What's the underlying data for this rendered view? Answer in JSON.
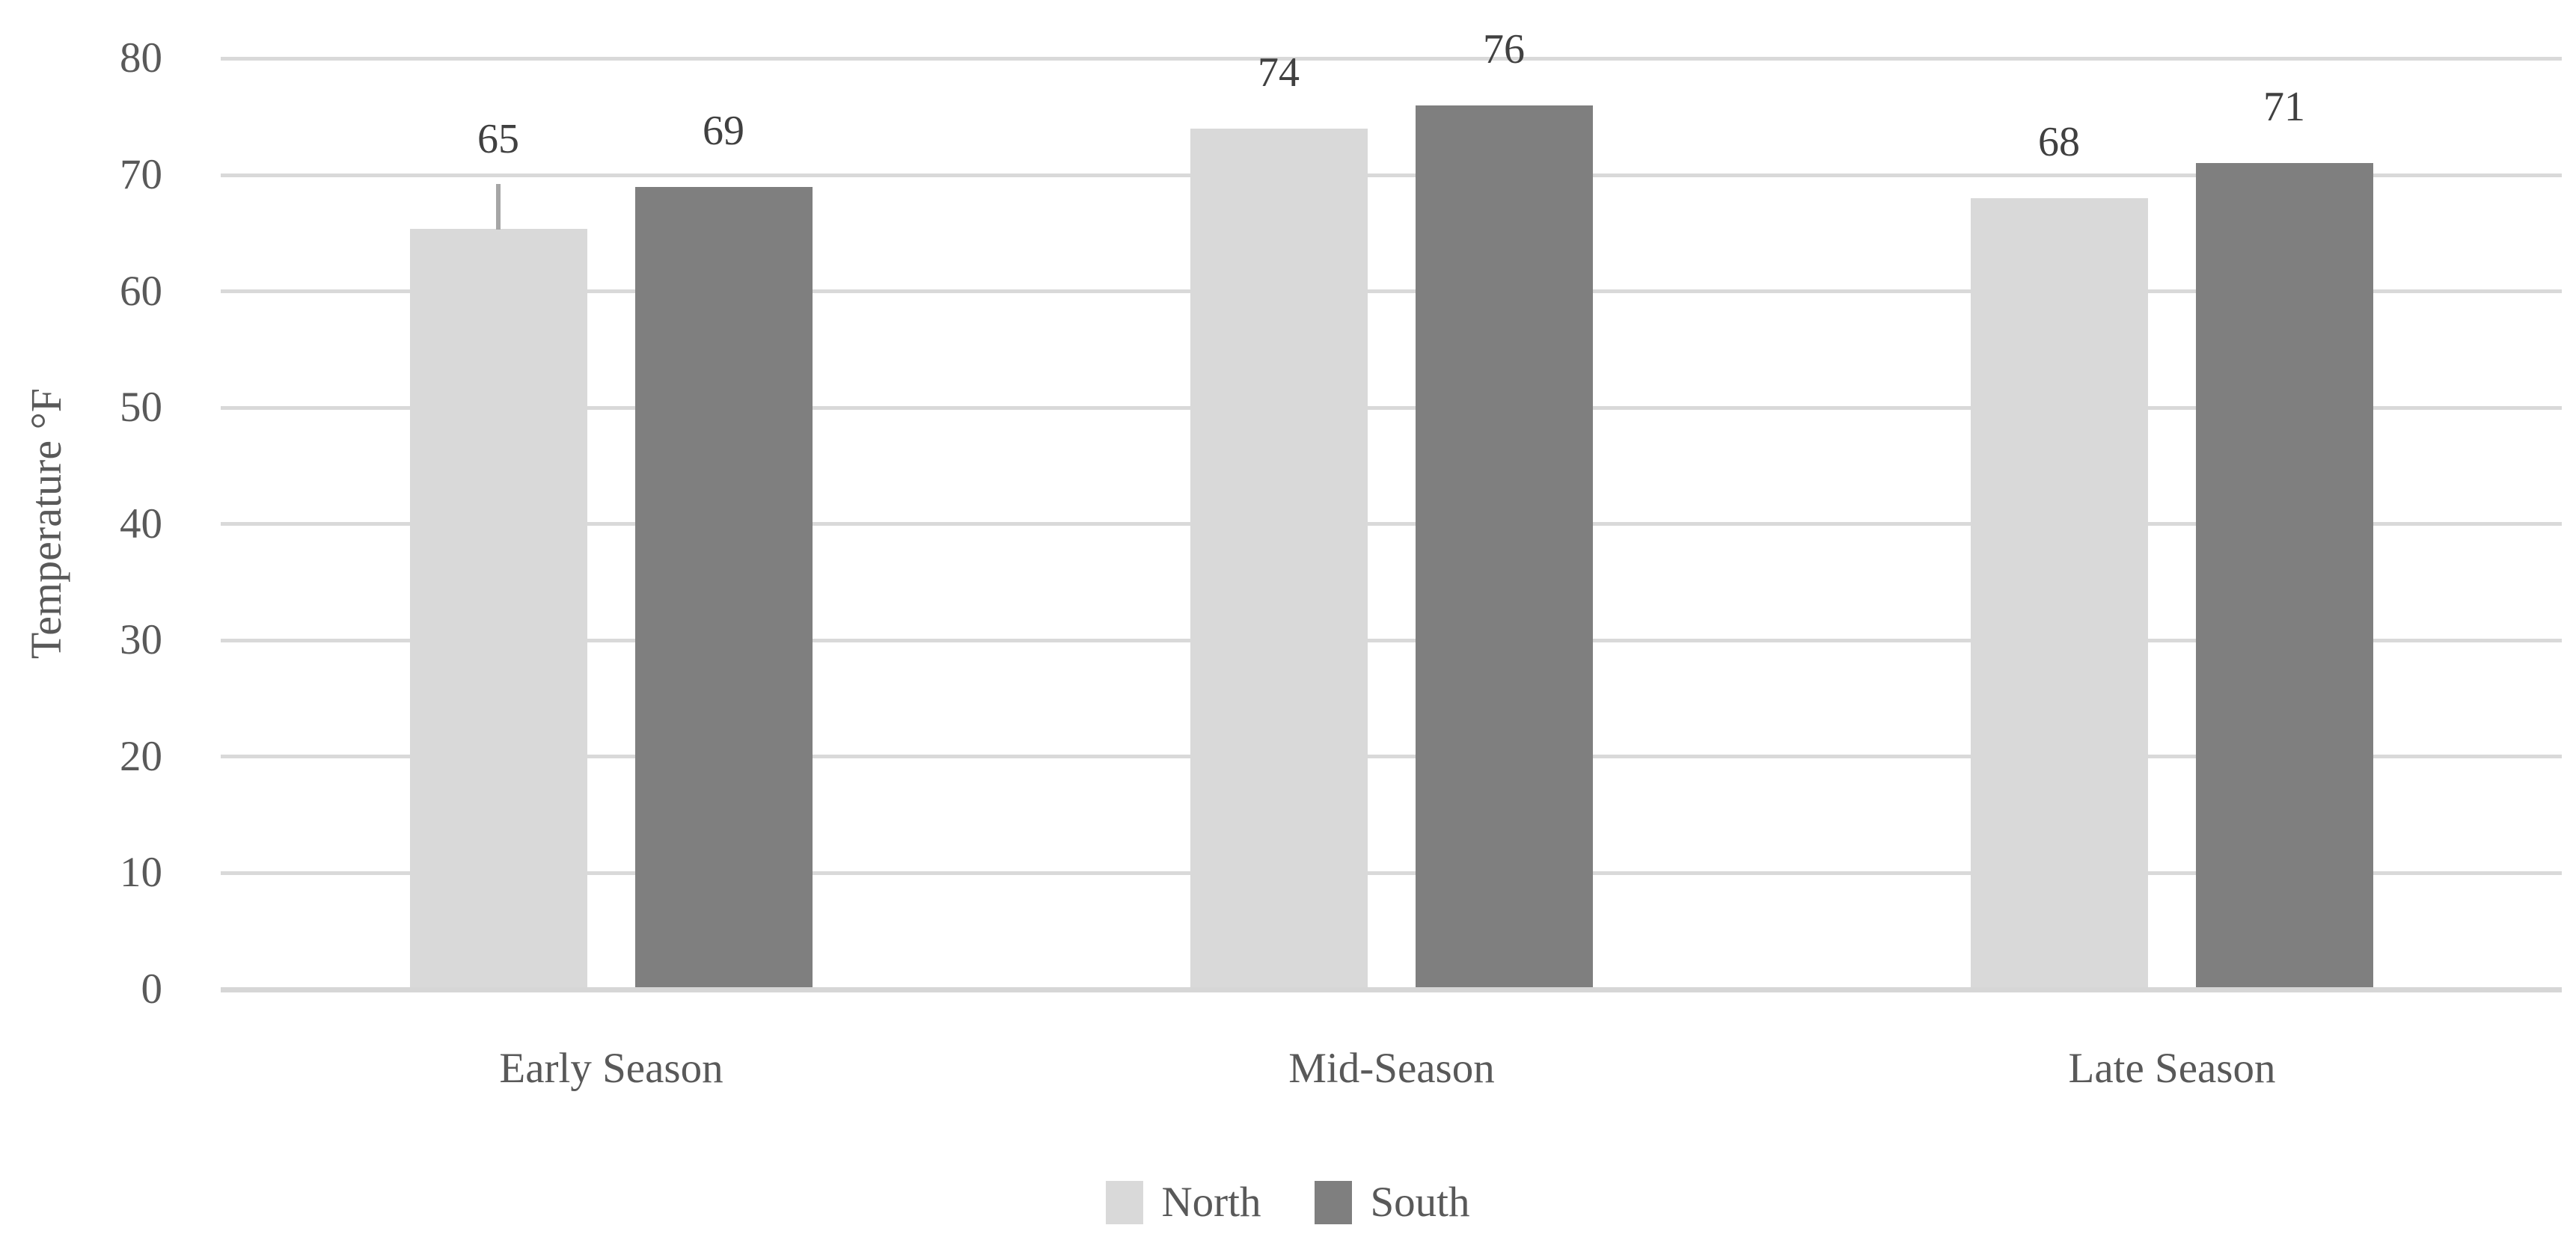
{
  "chart_data": {
    "type": "bar",
    "title": "",
    "xlabel": "",
    "ylabel": "Temperature °F",
    "ylim": [
      0,
      80
    ],
    "yticks": [
      0,
      10,
      20,
      30,
      40,
      50,
      60,
      70,
      80
    ],
    "grid": "horizontal",
    "legend_position": "bottom-center",
    "categories": [
      "Early Season",
      "Mid-Season",
      "Late Season"
    ],
    "series": [
      {
        "name": "North",
        "color": "#D9D9D9",
        "values": [
          65,
          74,
          68
        ],
        "data_labels": [
          "65",
          "74",
          "68"
        ]
      },
      {
        "name": "South",
        "color": "#7F7F7F",
        "values": [
          69,
          76,
          71
        ],
        "data_labels": [
          "69",
          "76",
          "71"
        ]
      }
    ],
    "error_bar": {
      "series": "North",
      "category": "Early Season",
      "series_index": 0,
      "category_index": 0,
      "bar_top_value": 65.4,
      "whisker_top_value": 69.2,
      "color": "#A6A6A6"
    },
    "colors": {
      "background": "#FFFFFF",
      "gridline": "#D9D9D9",
      "axis_line": "#D6D6D6",
      "axis_text": "#595959",
      "data_label_text": "#404040"
    }
  }
}
